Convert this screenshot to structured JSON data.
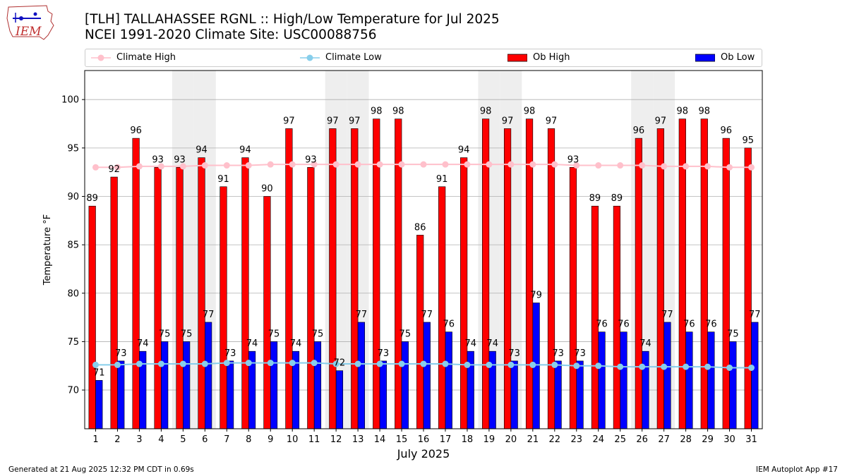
{
  "header": {
    "logo_text": "IEM",
    "title_line1": "[TLH] TALLAHASSEE RGNL :: High/Low Temperature for Jul 2025",
    "title_line2": "NCEI 1991-2020 Climate Site: USC00088756"
  },
  "footer": {
    "generated": "Generated at 21 Aug 2025 12:32 PM CDT in 0.69s",
    "app": "IEM Autoplot App #17"
  },
  "chart_data": {
    "type": "bar",
    "xlabel": "July 2025",
    "ylabel": "Temperature °F",
    "ylim": [
      66,
      103
    ],
    "yticks": [
      70,
      75,
      80,
      85,
      90,
      95,
      100
    ],
    "grid": true,
    "legend_placement": "top",
    "categories": [
      "1",
      "2",
      "3",
      "4",
      "5",
      "6",
      "7",
      "8",
      "9",
      "10",
      "11",
      "12",
      "13",
      "14",
      "15",
      "16",
      "17",
      "18",
      "19",
      "20",
      "21",
      "22",
      "23",
      "24",
      "25",
      "26",
      "27",
      "28",
      "29",
      "30",
      "31"
    ],
    "weekend_days": [
      5,
      6,
      12,
      13,
      19,
      20,
      26,
      27
    ],
    "series": [
      {
        "name": "Climate High",
        "kind": "line",
        "color": "#ffc0cb",
        "values": [
          93,
          93,
          93.1,
          93.1,
          93.1,
          93.2,
          93.2,
          93.2,
          93.3,
          93.3,
          93.3,
          93.3,
          93.3,
          93.3,
          93.3,
          93.3,
          93.3,
          93.3,
          93.3,
          93.3,
          93.3,
          93.3,
          93.2,
          93.2,
          93.2,
          93.2,
          93.1,
          93.1,
          93.1,
          93,
          93
        ]
      },
      {
        "name": "Climate Low",
        "kind": "line",
        "color": "#87ceeb",
        "values": [
          72.6,
          72.6,
          72.7,
          72.7,
          72.7,
          72.7,
          72.8,
          72.8,
          72.8,
          72.8,
          72.8,
          72.7,
          72.7,
          72.7,
          72.7,
          72.7,
          72.7,
          72.6,
          72.6,
          72.6,
          72.6,
          72.6,
          72.5,
          72.5,
          72.4,
          72.4,
          72.4,
          72.4,
          72.4,
          72.3,
          72.3
        ]
      },
      {
        "name": "Ob High",
        "kind": "bar",
        "color": "#ff0000",
        "values": [
          89,
          92,
          96,
          93,
          93,
          94,
          91,
          94,
          90,
          97,
          93,
          97,
          97,
          98,
          98,
          86,
          91,
          94,
          98,
          97,
          98,
          97,
          93,
          89,
          89,
          96,
          97,
          98,
          98,
          96,
          95
        ]
      },
      {
        "name": "Ob Low",
        "kind": "bar",
        "color": "#0000ff",
        "values": [
          71,
          73,
          74,
          75,
          75,
          77,
          73,
          74,
          75,
          74,
          75,
          72,
          77,
          73,
          75,
          77,
          76,
          74,
          74,
          73,
          79,
          73,
          73,
          76,
          76,
          74,
          77,
          76,
          76,
          75,
          77
        ]
      }
    ]
  }
}
